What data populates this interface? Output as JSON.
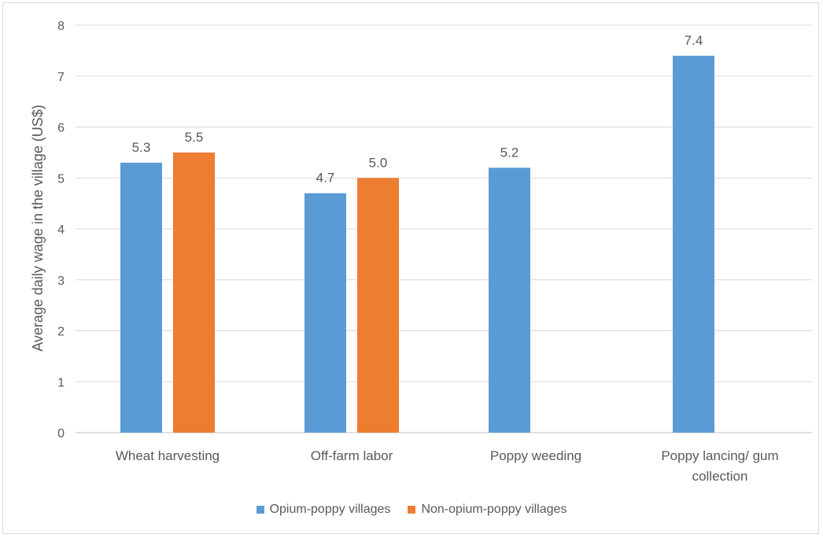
{
  "chart_data": {
    "type": "bar",
    "title": "",
    "ylabel": "Average daily wage in the village (US$)",
    "xlabel": "",
    "ylim": [
      0,
      8
    ],
    "yticks": [
      0,
      1,
      2,
      3,
      4,
      5,
      6,
      7,
      8
    ],
    "grid": true,
    "legend_position": "bottom",
    "categories": [
      [
        "Wheat harvesting"
      ],
      [
        "Off-farm labor"
      ],
      [
        "Poppy weeding"
      ],
      [
        "Poppy lancing/ gum",
        "collection"
      ]
    ],
    "series": [
      {
        "name": "Opium-poppy villages",
        "color": "#5b9bd5",
        "values": [
          5.3,
          4.7,
          5.2,
          7.4
        ],
        "labels": [
          "5.3",
          "4.7",
          "5.2",
          "7.4"
        ]
      },
      {
        "name": "Non-opium-poppy villages",
        "color": "#ed7d31",
        "values": [
          5.5,
          5.0,
          null,
          null
        ],
        "labels": [
          "5.5",
          "5.0",
          "",
          ""
        ]
      }
    ]
  }
}
